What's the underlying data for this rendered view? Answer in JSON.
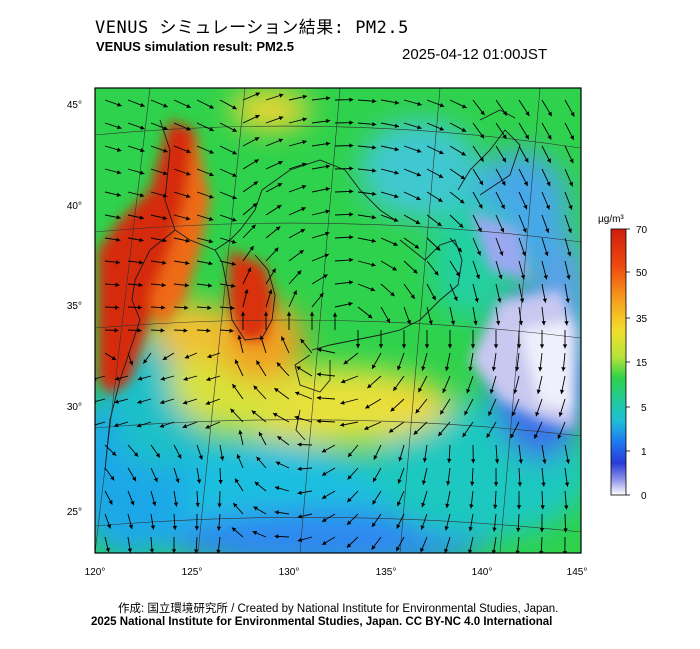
{
  "header": {
    "title_jp": "VENUS シミュレーション結果: PM2.5",
    "title_en": "VENUS simulation result: PM2.5",
    "timestamp": "2025-04-12 01:00JST"
  },
  "map": {
    "lon_ticks": [
      "120°",
      "125°",
      "130°",
      "135°",
      "140°",
      "145°"
    ],
    "lat_ticks": [
      "45°",
      "40°",
      "35°",
      "30°",
      "25°"
    ]
  },
  "colorbar": {
    "unit": "µg/m³",
    "ticks": [
      "70",
      "50",
      "35",
      "15",
      "5",
      "1",
      "0"
    ],
    "colors": [
      "#d62a10",
      "#f07a12",
      "#f6c42a",
      "#d8e23a",
      "#2ed24a",
      "#1ebfd6",
      "#1e6ff0",
      "#2a3ad8",
      "#ffffff"
    ]
  },
  "footer": {
    "credit": "作成: 国立環境研究所 / Created by National Institute for Environmental Studies, Japan.",
    "copyright": "2025 National Institute for Environmental Studies, Japan. CC BY-NC 4.0 International"
  }
}
